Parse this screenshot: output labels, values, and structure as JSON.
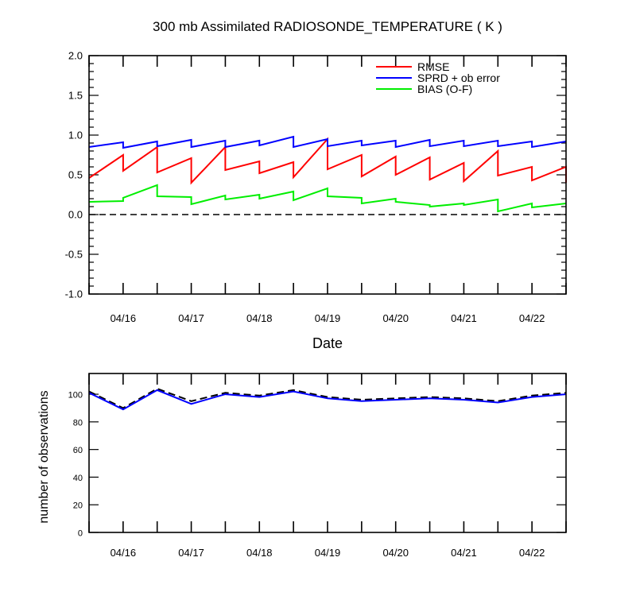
{
  "chart_data": [
    {
      "type": "line",
      "title": "300 mb Assimilated RADIOSONDE_TEMPERATURE ( K )",
      "xlabel": "Date",
      "ylabel": "",
      "xlim": [
        0,
        7
      ],
      "ylim": [
        -1.0,
        2.0
      ],
      "x_tick_labels": [
        "04/16",
        "04/17",
        "04/18",
        "04/19",
        "04/20",
        "04/21",
        "04/22"
      ],
      "x_tick_positions": [
        0.5,
        1.5,
        2.5,
        3.5,
        4.5,
        5.5,
        6.5
      ],
      "y_tick_labels": [
        "-1.0",
        "-0.5",
        "0.0",
        "0.5",
        "1.0",
        "1.5",
        "2.0"
      ],
      "y_tick_values": [
        -1.0,
        -0.5,
        0.0,
        0.5,
        1.0,
        1.5,
        2.0
      ],
      "reference_line": {
        "y": 0.0,
        "style": "dashed"
      },
      "legend_position": "top-right",
      "series": [
        {
          "name": "RMSE",
          "color": "#ff0000",
          "x": [
            0,
            0.5,
            0.5,
            1,
            1,
            1.5,
            1.5,
            2,
            2,
            2.5,
            2.5,
            3,
            3,
            3.5,
            3.5,
            4,
            4,
            4.5,
            4.5,
            5,
            5,
            5.5,
            5.5,
            6,
            6,
            6.5,
            6.5,
            7,
            7
          ],
          "values": [
            0.46,
            0.75,
            0.55,
            0.85,
            0.53,
            0.71,
            0.4,
            0.85,
            0.56,
            0.67,
            0.52,
            0.66,
            0.47,
            0.95,
            0.57,
            0.75,
            0.48,
            0.73,
            0.5,
            0.72,
            0.44,
            0.65,
            0.42,
            0.8,
            0.49,
            0.6,
            0.43,
            0.6,
            0.4
          ]
        },
        {
          "name": "SPRD + ob error",
          "color": "#0000ff",
          "x": [
            0,
            0.5,
            0.5,
            1,
            1,
            1.5,
            1.5,
            2,
            2,
            2.5,
            2.5,
            3,
            3,
            3.5,
            3.5,
            4,
            4,
            4.5,
            4.5,
            5,
            5,
            5.5,
            5.5,
            6,
            6,
            6.5,
            6.5,
            7
          ],
          "values": [
            0.85,
            0.91,
            0.84,
            0.92,
            0.86,
            0.94,
            0.85,
            0.93,
            0.85,
            0.93,
            0.87,
            0.98,
            0.85,
            0.95,
            0.86,
            0.93,
            0.87,
            0.93,
            0.85,
            0.94,
            0.86,
            0.93,
            0.86,
            0.93,
            0.86,
            0.92,
            0.85,
            0.92
          ]
        },
        {
          "name": "BIAS (O-F)",
          "color": "#00ee00",
          "x": [
            0,
            0.5,
            0.5,
            1,
            1,
            1.5,
            1.5,
            2,
            2,
            2.5,
            2.5,
            3,
            3,
            3.5,
            3.5,
            4,
            4,
            4.5,
            4.5,
            5,
            5,
            5.5,
            5.5,
            6,
            6,
            6.5,
            6.5,
            7
          ],
          "values": [
            0.16,
            0.17,
            0.21,
            0.37,
            0.23,
            0.22,
            0.13,
            0.24,
            0.19,
            0.25,
            0.2,
            0.29,
            0.18,
            0.33,
            0.23,
            0.21,
            0.14,
            0.2,
            0.16,
            0.12,
            0.1,
            0.14,
            0.12,
            0.19,
            0.04,
            0.14,
            0.09,
            0.14
          ]
        }
      ]
    },
    {
      "type": "line",
      "title": "",
      "xlabel": "",
      "ylabel": "number of observations",
      "xlim": [
        0,
        7
      ],
      "ylim": [
        0,
        115
      ],
      "x_tick_labels": [
        "04/16",
        "04/17",
        "04/18",
        "04/19",
        "04/20",
        "04/21",
        "04/22"
      ],
      "x_tick_positions": [
        0.5,
        1.5,
        2.5,
        3.5,
        4.5,
        5.5,
        6.5
      ],
      "y_tick_labels": [
        "0",
        "20",
        "40",
        "60",
        "80",
        "100"
      ],
      "y_tick_values": [
        0,
        20,
        40,
        60,
        80,
        100
      ],
      "series": [
        {
          "style": "dashed",
          "color": "#000000",
          "x": [
            0,
            0.5,
            1,
            1.5,
            2,
            2.5,
            3,
            3.5,
            4,
            4.5,
            5,
            5.5,
            6,
            6.5,
            7
          ],
          "values": [
            102,
            90,
            104,
            95,
            101,
            99,
            103,
            98,
            96,
            97,
            98,
            97,
            95,
            99,
            101
          ]
        },
        {
          "style": "solid",
          "color": "#0000ff",
          "x": [
            0,
            0.5,
            1,
            1.5,
            2,
            2.5,
            3,
            3.5,
            4,
            4.5,
            5,
            5.5,
            6,
            6.5,
            7
          ],
          "values": [
            101,
            89,
            103,
            93,
            100,
            98,
            102,
            97,
            95,
            96,
            97,
            96,
            94,
            98,
            100
          ]
        }
      ]
    }
  ]
}
